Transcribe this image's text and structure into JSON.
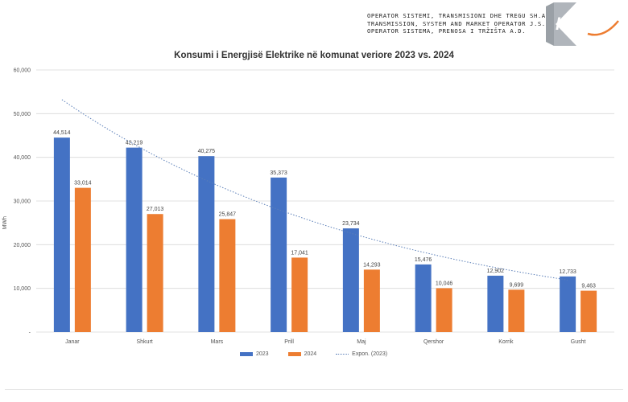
{
  "header": {
    "lines": [
      "OPERATOR SISTEMI, TRANSMISIONI DHE TREGU SH.A.",
      "TRANSMISSION, SYSTEM AND MARKET OPERATOR J.S.C.",
      "OPERATOR SISTEMA, PRENOSA I TRŽIŠTA  A.D."
    ],
    "logo_text": "kostt"
  },
  "colors": {
    "series_2023": "#4472c4",
    "series_2024": "#ed7d31",
    "trend": "#5b7fb8",
    "grid": "#d9d9d9",
    "logo": "#9aa0a6"
  },
  "chart_data": {
    "type": "bar",
    "title": "Konsumi i Energjisë Elektrike në komunat veriore 2023 vs. 2024",
    "ylabel": "MWh",
    "xlabel": "",
    "ylim": [
      0,
      60000
    ],
    "yticks": [
      0,
      10000,
      20000,
      30000,
      40000,
      50000,
      60000
    ],
    "ytick_labels": [
      "-",
      "10,000",
      "20,000",
      "30,000",
      "40,000",
      "50,000",
      "60,000"
    ],
    "grid": true,
    "legend_position": "bottom",
    "categories": [
      "Janar",
      "Shkurt",
      "Mars",
      "Prill",
      "Maj",
      "Qershor",
      "Korrik",
      "Gusht"
    ],
    "series": [
      {
        "name": "2023",
        "values": [
          44514,
          42219,
          40275,
          35373,
          23734,
          15476,
          12902,
          12733
        ],
        "labels": [
          "44,514",
          "42,219",
          "40,275",
          "35,373",
          "23,734",
          "15,476",
          "12,902",
          "12,733"
        ]
      },
      {
        "name": "2024",
        "values": [
          33014,
          27013,
          25847,
          17041,
          14293,
          10046,
          9699,
          9463
        ],
        "labels": [
          "33,014",
          "27,013",
          "25,847",
          "17,041",
          "14,293",
          "10,046",
          "9,699",
          "9,463"
        ]
      }
    ],
    "trendline": {
      "name": "Expon. (2023)",
      "type": "exponential",
      "of_series": "2023"
    }
  }
}
